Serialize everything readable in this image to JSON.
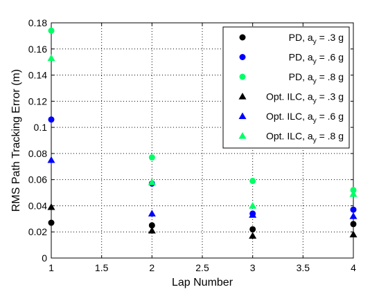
{
  "chart_data": {
    "type": "scatter",
    "title": "",
    "xlabel": "Lap Number",
    "ylabel": "RMS Path Tracking Error (m)",
    "xlim": [
      1,
      4
    ],
    "ylim": [
      0,
      0.18
    ],
    "xticks": [
      1,
      1.5,
      2,
      2.5,
      3,
      3.5,
      4
    ],
    "yticks": [
      0,
      0.02,
      0.04,
      0.06,
      0.08,
      0.1,
      0.12,
      0.14,
      0.16,
      0.18
    ],
    "xtick_labels": [
      "1",
      "1.5",
      "2",
      "2.5",
      "3",
      "3.5",
      "4"
    ],
    "ytick_labels": [
      "0",
      "0.02",
      "0.04",
      "0.06",
      "0.08",
      "0.1",
      "0.12",
      "0.14",
      "0.16",
      "0.18"
    ],
    "grid": true,
    "legend_position": "top-right",
    "series": [
      {
        "name_main": "PD, a",
        "name_sub": "y",
        "name_tail": " = .3 g",
        "marker": "circle",
        "color": "#000000",
        "x": [
          1,
          2,
          3,
          4
        ],
        "y": [
          0.027,
          0.025,
          0.022,
          0.026
        ]
      },
      {
        "name_main": "PD, a",
        "name_sub": "y",
        "name_tail": " = .6 g",
        "marker": "circle",
        "color": "#0000ff",
        "x": [
          1,
          2,
          3,
          4
        ],
        "y": [
          0.106,
          0.057,
          0.034,
          0.037
        ]
      },
      {
        "name_main": "PD, a",
        "name_sub": "y",
        "name_tail": " = .8 g",
        "marker": "circle",
        "color": "#00ff66",
        "x": [
          1,
          2,
          3,
          4
        ],
        "y": [
          0.174,
          0.077,
          0.059,
          0.052
        ]
      },
      {
        "name_main": "Opt. ILC, a",
        "name_sub": "y",
        "name_tail": " = .3 g",
        "marker": "triangle",
        "color": "#000000",
        "x": [
          1,
          2,
          3,
          4
        ],
        "y": [
          0.039,
          0.021,
          0.017,
          0.018
        ]
      },
      {
        "name_main": "Opt. ILC, a",
        "name_sub": "y",
        "name_tail": " = .6 g",
        "marker": "triangle",
        "color": "#0000ff",
        "x": [
          1,
          2,
          3,
          4
        ],
        "y": [
          0.075,
          0.034,
          0.033,
          0.032
        ]
      },
      {
        "name_main": "Opt. ILC, a",
        "name_sub": "y",
        "name_tail": " = .8 g",
        "marker": "triangle",
        "color": "#00ff66",
        "x": [
          1,
          2,
          3,
          4
        ],
        "y": [
          0.153,
          0.058,
          0.04,
          0.049
        ]
      }
    ]
  }
}
